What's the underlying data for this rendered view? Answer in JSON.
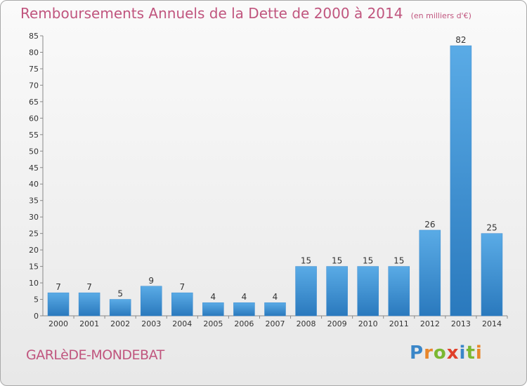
{
  "chart_data": {
    "type": "bar",
    "title": "Remboursements Annuels de la Dette de 2000 à 2014",
    "subtitle": "(en milliers d'€)",
    "categories": [
      "2000",
      "2001",
      "2002",
      "2003",
      "2004",
      "2005",
      "2006",
      "2007",
      "2008",
      "2009",
      "2010",
      "2011",
      "2012",
      "2013",
      "2014"
    ],
    "values": [
      7,
      7,
      5,
      9,
      7,
      4,
      4,
      4,
      15,
      15,
      15,
      15,
      26,
      82,
      25
    ],
    "ylim": [
      0,
      85
    ],
    "yticks": [
      0,
      5,
      10,
      15,
      20,
      25,
      30,
      35,
      40,
      45,
      50,
      55,
      60,
      65,
      70,
      75,
      80,
      85
    ],
    "grid": false,
    "legend": "none",
    "bar_color": "#4a98d8"
  },
  "footer": {
    "commune": "GARLèDE-MONDEBAT",
    "logo": {
      "text": "Proxiti",
      "letters": [
        {
          "ch": "P",
          "color": "#3a86c8"
        },
        {
          "ch": "r",
          "color": "#e8862a"
        },
        {
          "ch": "o",
          "color": "#7bb832"
        },
        {
          "ch": "x",
          "color": "#e0402a"
        },
        {
          "ch": "i",
          "color": "#3a86c8"
        },
        {
          "ch": "t",
          "color": "#7bb832"
        },
        {
          "ch": "i",
          "color": "#e8862a"
        }
      ]
    }
  }
}
